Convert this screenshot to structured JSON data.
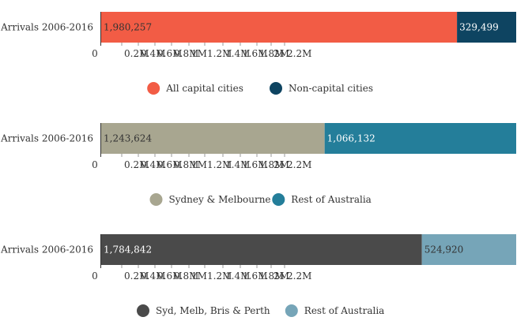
{
  "chart_data": [
    {
      "type": "bar",
      "orientation": "horizontal",
      "stacked": true,
      "categories": [
        "Arrivals 2006-2016"
      ],
      "series": [
        {
          "name": "All capital cities",
          "values": [
            1980257
          ],
          "label": "1,980,257",
          "color": "#f25c45",
          "label_color": "#333333"
        },
        {
          "name": "Non-capital cities",
          "values": [
            329499
          ],
          "label": "329,499",
          "color": "#0e4461",
          "label_color": "#ffffff"
        }
      ],
      "x_ticks": [
        "0",
        "0.2M",
        "0.4M",
        "0.6M",
        "0.8M",
        "1M",
        "1.2M",
        "1.4M",
        "1.6M",
        "1.8M",
        "2M",
        "2.2M"
      ],
      "xlim": [
        0,
        2309756
      ],
      "legend": "bottom-center"
    },
    {
      "type": "bar",
      "orientation": "horizontal",
      "stacked": true,
      "categories": [
        "Arrivals 2006-2016"
      ],
      "series": [
        {
          "name": "Sydney & Melbourne",
          "values": [
            1243624
          ],
          "label": "1,243,624",
          "color": "#a8a690",
          "label_color": "#333333"
        },
        {
          "name": "Rest of Australia",
          "values": [
            1066132
          ],
          "label": "1,066,132",
          "color": "#247e9a",
          "label_color": "#ffffff"
        }
      ],
      "x_ticks": [
        "0",
        "0.2M",
        "0.4M",
        "0.6M",
        "0.8M",
        "1M",
        "1.2M",
        "1.4M",
        "1.6M",
        "1.8M",
        "2M",
        "2.2M"
      ],
      "xlim": [
        0,
        2309756
      ],
      "legend": "bottom-center"
    },
    {
      "type": "bar",
      "orientation": "horizontal",
      "stacked": true,
      "categories": [
        "Arrivals 2006-2016"
      ],
      "series": [
        {
          "name": "Syd, Melb, Bris & Perth",
          "values": [
            1784842
          ],
          "label": "1,784,842",
          "color": "#4a4a4a",
          "label_color": "#ffffff"
        },
        {
          "name": "Rest of Australia",
          "values": [
            524920
          ],
          "label": "524,920",
          "color": "#76a5b8",
          "label_color": "#333333"
        }
      ],
      "x_ticks": [
        "0",
        "0.2M",
        "0.4M",
        "0.6M",
        "0.8M",
        "1M",
        "1.2M",
        "1.4M",
        "1.6M",
        "1.8M",
        "2M",
        "2.2M"
      ],
      "xlim": [
        0,
        2309762
      ],
      "legend": "bottom-center"
    }
  ]
}
